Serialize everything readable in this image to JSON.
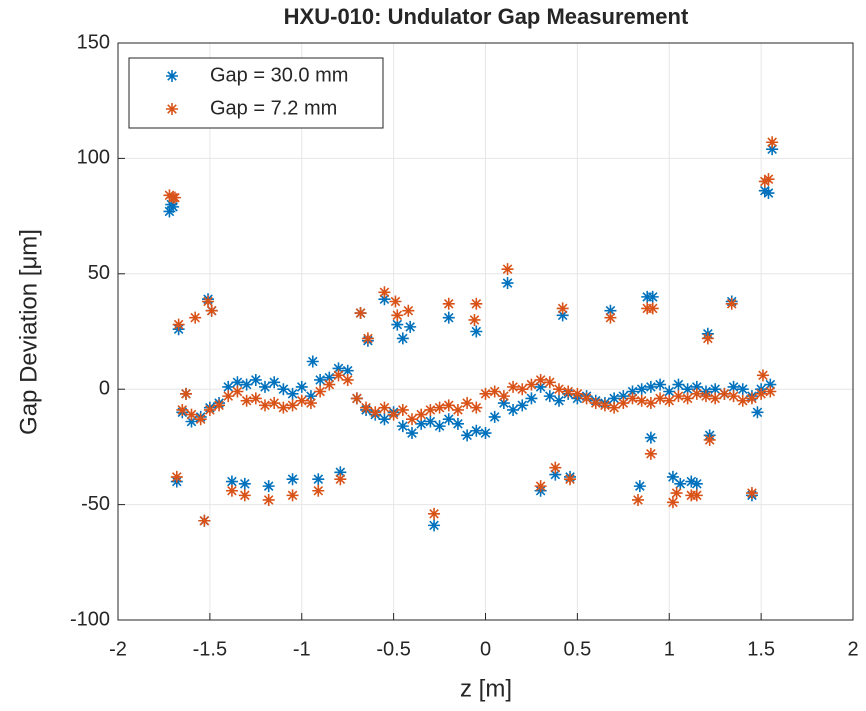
{
  "chart_data": {
    "type": "scatter",
    "title": "HXU-010: Undulator Gap Measurement",
    "x_label": "z [m]",
    "y_label": "Gap Deviation [μm]",
    "xlim": [
      -2,
      2
    ],
    "xticks": [
      -2,
      -1.5,
      -1,
      -0.5,
      0,
      0.5,
      1,
      1.5,
      2
    ],
    "ylim": [
      -100,
      150
    ],
    "yticks": [
      -100,
      -50,
      0,
      50,
      100,
      150
    ],
    "grid": true,
    "legend": "upper left",
    "series": [
      {
        "name": "Gap = 30.0 mm",
        "color": "#0072bd",
        "x": [
          -1.65,
          -1.6,
          -1.55,
          -1.5,
          -1.45,
          -1.4,
          -1.35,
          -1.3,
          -1.25,
          -1.2,
          -1.15,
          -1.1,
          -1.05,
          -1.0,
          -0.95,
          -0.9,
          -0.85,
          -0.8,
          -0.75,
          -0.7,
          -0.65,
          -0.6,
          -0.55,
          -0.5,
          -0.45,
          -0.4,
          -0.35,
          -0.3,
          -0.25,
          -0.2,
          -0.15,
          -0.1,
          -0.05,
          0,
          0.05,
          0.1,
          0.15,
          0.2,
          0.25,
          0.3,
          0.35,
          0.4,
          0.45,
          0.5,
          0.55,
          0.6,
          0.65,
          0.7,
          0.75,
          0.8,
          0.85,
          0.9,
          0.95,
          1.0,
          1.05,
          1.1,
          1.15,
          1.2,
          1.25,
          1.3,
          1.35,
          1.4,
          1.45,
          1.5,
          1.55,
          -1.72,
          -1.71,
          -1.7,
          -1.68,
          -1.67,
          -1.63,
          -1.53,
          -1.51,
          -1.49,
          -1.38,
          -1.31,
          -1.18,
          -1.05,
          -0.91,
          -0.79,
          -0.94,
          -0.68,
          -0.64,
          -0.55,
          -0.48,
          -0.45,
          -0.41,
          -0.28,
          -0.2,
          -0.05,
          0.12,
          0.3,
          0.38,
          0.42,
          0.46,
          0.68,
          0.84,
          0.88,
          0.91,
          0.9,
          1.02,
          1.06,
          1.12,
          1.15,
          1.21,
          1.22,
          1.34,
          1.45,
          1.52,
          1.54,
          1.56,
          1.48
        ],
        "values": [
          -10,
          -14,
          -12,
          -8,
          -6,
          1,
          3,
          2,
          4,
          1,
          3,
          0,
          -2,
          1,
          -3,
          4,
          5,
          9,
          8,
          -4,
          -9,
          -11,
          -13,
          -10,
          -16,
          -19,
          -15,
          -14,
          -16,
          -13,
          -15,
          -20,
          -18,
          -19,
          -12,
          -6,
          -9,
          -7,
          -4,
          1,
          -3,
          -5,
          -2,
          -4,
          -3,
          -5,
          -6,
          -4,
          -3,
          -1,
          0,
          1,
          2,
          -1,
          2,
          0,
          1,
          -1,
          0,
          -2,
          1,
          0,
          -3,
          0,
          2,
          77,
          80,
          79,
          -40,
          26,
          -2,
          -57,
          39,
          34,
          -40,
          -41,
          -42,
          -39,
          -39,
          -36,
          12,
          33,
          21,
          39,
          28,
          22,
          27,
          -59,
          31,
          25,
          46,
          -44,
          -37,
          32,
          -38,
          34,
          -42,
          40,
          40,
          -21,
          -38,
          -41,
          -40,
          -41,
          24,
          -20,
          38,
          -46,
          86,
          85,
          104,
          -10
        ]
      },
      {
        "name": "Gap = 7.2 mm",
        "color": "#d95319",
        "x": [
          -1.65,
          -1.6,
          -1.55,
          -1.5,
          -1.45,
          -1.4,
          -1.35,
          -1.3,
          -1.25,
          -1.2,
          -1.15,
          -1.1,
          -1.05,
          -1.0,
          -0.95,
          -0.9,
          -0.85,
          -0.8,
          -0.75,
          -0.7,
          -0.65,
          -0.6,
          -0.55,
          -0.5,
          -0.45,
          -0.4,
          -0.35,
          -0.3,
          -0.25,
          -0.2,
          -0.15,
          -0.1,
          -0.05,
          0,
          0.05,
          0.1,
          0.15,
          0.2,
          0.25,
          0.3,
          0.35,
          0.4,
          0.45,
          0.5,
          0.55,
          0.6,
          0.65,
          0.7,
          0.75,
          0.8,
          0.85,
          0.9,
          0.95,
          1.0,
          1.05,
          1.1,
          1.15,
          1.2,
          1.25,
          1.3,
          1.35,
          1.4,
          1.45,
          1.5,
          1.55,
          -1.72,
          -1.7,
          -1.69,
          -1.68,
          -1.67,
          -1.63,
          -1.58,
          -1.53,
          -1.51,
          -1.49,
          -1.38,
          -1.31,
          -1.18,
          -1.05,
          -0.91,
          -0.79,
          -0.68,
          -0.64,
          -0.55,
          -0.49,
          -0.48,
          -0.42,
          -0.28,
          -0.2,
          -0.05,
          -0.06,
          0.12,
          0.3,
          0.38,
          0.42,
          0.46,
          0.68,
          0.83,
          0.88,
          0.91,
          0.9,
          1.02,
          1.04,
          1.12,
          1.15,
          1.21,
          1.22,
          1.34,
          1.45,
          1.52,
          1.54,
          1.56,
          1.51
        ],
        "values": [
          -9,
          -11,
          -13,
          -9,
          -7,
          -3,
          -1,
          -5,
          -4,
          -7,
          -6,
          -8,
          -7,
          -5,
          -6,
          -1,
          2,
          6,
          4,
          -4,
          -8,
          -10,
          -8,
          -11,
          -9,
          -13,
          -11,
          -9,
          -8,
          -7,
          -9,
          -6,
          -8,
          -2,
          -1,
          -3,
          1,
          0,
          2,
          4,
          3,
          0,
          -1,
          -2,
          -4,
          -6,
          -7,
          -8,
          -6,
          -4,
          -5,
          -6,
          -4,
          -5,
          -3,
          -4,
          -2,
          -3,
          -4,
          -2,
          -3,
          -5,
          -4,
          -2,
          -1,
          84,
          83,
          83,
          -38,
          28,
          -2,
          31,
          -57,
          38,
          34,
          -44,
          -46,
          -48,
          -46,
          -44,
          -39,
          33,
          22,
          42,
          38,
          32,
          34,
          -54,
          37,
          37,
          30,
          52,
          -42,
          -34,
          35,
          -39,
          31,
          -48,
          35,
          35,
          -28,
          -49,
          -45,
          -46,
          -46,
          22,
          -22,
          37,
          -45,
          90,
          91,
          107,
          6
        ]
      }
    ]
  }
}
